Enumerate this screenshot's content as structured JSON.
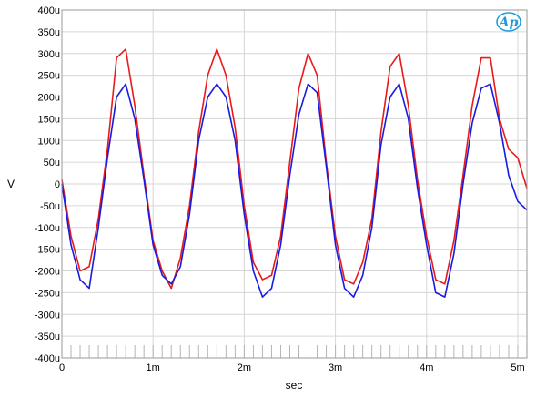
{
  "chart_data": {
    "type": "line",
    "title": "",
    "xlabel": "sec",
    "ylabel": "V",
    "xlim": [
      0,
      0.0051
    ],
    "ylim": [
      -0.0004,
      0.0004
    ],
    "x_ticks": [
      {
        "value": 0,
        "label": "0"
      },
      {
        "value": 0.001,
        "label": "1m"
      },
      {
        "value": 0.002,
        "label": "2m"
      },
      {
        "value": 0.003,
        "label": "3m"
      },
      {
        "value": 0.004,
        "label": "4m"
      },
      {
        "value": 0.005,
        "label": "5m"
      }
    ],
    "y_ticks": [
      {
        "value": 0.0004,
        "label": "400u"
      },
      {
        "value": 0.00035,
        "label": "350u"
      },
      {
        "value": 0.0003,
        "label": "300u"
      },
      {
        "value": 0.00025,
        "label": "250u"
      },
      {
        "value": 0.0002,
        "label": "200u"
      },
      {
        "value": 0.00015,
        "label": "150u"
      },
      {
        "value": 0.0001,
        "label": "100u"
      },
      {
        "value": 5e-05,
        "label": "50u"
      },
      {
        "value": 0,
        "label": "0"
      },
      {
        "value": -5e-05,
        "label": "-50u"
      },
      {
        "value": -0.0001,
        "label": "-100u"
      },
      {
        "value": -0.00015,
        "label": "-150u"
      },
      {
        "value": -0.0002,
        "label": "-200u"
      },
      {
        "value": -0.00025,
        "label": "-250u"
      },
      {
        "value": -0.0003,
        "label": "-300u"
      },
      {
        "value": -0.00035,
        "label": "-350u"
      },
      {
        "value": -0.0004,
        "label": "-400u"
      }
    ],
    "grid": true,
    "logo_text": "Ap",
    "series": [
      {
        "color": "#e81a1a",
        "x": [
          0,
          0.0001,
          0.0002,
          0.0003,
          0.0004,
          0.0005,
          0.0006,
          0.0007,
          0.0008,
          0.0009,
          0.001,
          0.0011,
          0.0012,
          0.0013,
          0.0014,
          0.0015,
          0.0016,
          0.0017,
          0.0018,
          0.0019,
          0.002,
          0.0021,
          0.0022,
          0.0023,
          0.0024,
          0.0025,
          0.0026,
          0.0027,
          0.0028,
          0.0029,
          0.003,
          0.0031,
          0.0032,
          0.0033,
          0.0034,
          0.0035,
          0.0036,
          0.0037,
          0.0038,
          0.0039,
          0.004,
          0.0041,
          0.0042,
          0.0043,
          0.0044,
          0.0045,
          0.0046,
          0.0047,
          0.0048,
          0.0049,
          0.005,
          0.0051
        ],
        "values": [
          1e-05,
          -0.00012,
          -0.0002,
          -0.00019,
          -8e-05,
          8e-05,
          0.00029,
          0.00031,
          0.00018,
          2e-05,
          -0.00013,
          -0.0002,
          -0.00024,
          -0.00017,
          -5e-05,
          0.00012,
          0.00025,
          0.00031,
          0.00025,
          0.00013,
          -5e-05,
          -0.00018,
          -0.00022,
          -0.00021,
          -0.00012,
          5e-05,
          0.00022,
          0.0003,
          0.00025,
          5e-05,
          -0.00012,
          -0.00022,
          -0.00023,
          -0.00018,
          -8e-05,
          0.00012,
          0.00027,
          0.0003,
          0.00018,
          1e-05,
          -0.00012,
          -0.00022,
          -0.00023,
          -0.00013,
          2e-05,
          0.00018,
          0.00029,
          0.00029,
          0.00015,
          8e-05,
          6e-05,
          -1e-05
        ]
      },
      {
        "color": "#1a1ae0",
        "x": [
          0,
          0.0001,
          0.0002,
          0.0003,
          0.0004,
          0.0005,
          0.0006,
          0.0007,
          0.0008,
          0.0009,
          0.001,
          0.0011,
          0.0012,
          0.0013,
          0.0014,
          0.0015,
          0.0016,
          0.0017,
          0.0018,
          0.0019,
          0.002,
          0.0021,
          0.0022,
          0.0023,
          0.0024,
          0.0025,
          0.0026,
          0.0027,
          0.0028,
          0.0029,
          0.003,
          0.0031,
          0.0032,
          0.0033,
          0.0034,
          0.0035,
          0.0036,
          0.0037,
          0.0038,
          0.0039,
          0.004,
          0.0041,
          0.0042,
          0.0043,
          0.0044,
          0.0045,
          0.0046,
          0.0047,
          0.0048,
          0.0049,
          0.005,
          0.0051
        ],
        "values": [
          0.0,
          -0.00014,
          -0.00022,
          -0.00024,
          -0.0001,
          6e-05,
          0.0002,
          0.00023,
          0.00015,
          1e-05,
          -0.00014,
          -0.00021,
          -0.00023,
          -0.00019,
          -7e-05,
          0.0001,
          0.0002,
          0.00023,
          0.0002,
          0.0001,
          -7e-05,
          -0.0002,
          -0.00026,
          -0.00024,
          -0.00014,
          2e-05,
          0.00016,
          0.00023,
          0.00021,
          4e-05,
          -0.00014,
          -0.00024,
          -0.00026,
          -0.00021,
          -0.0001,
          9e-05,
          0.0002,
          0.00023,
          0.00015,
          -1e-05,
          -0.00014,
          -0.00025,
          -0.00026,
          -0.00016,
          0.0,
          0.00014,
          0.00022,
          0.00023,
          0.00014,
          2e-05,
          -4e-05,
          -6e-05
        ]
      }
    ]
  }
}
